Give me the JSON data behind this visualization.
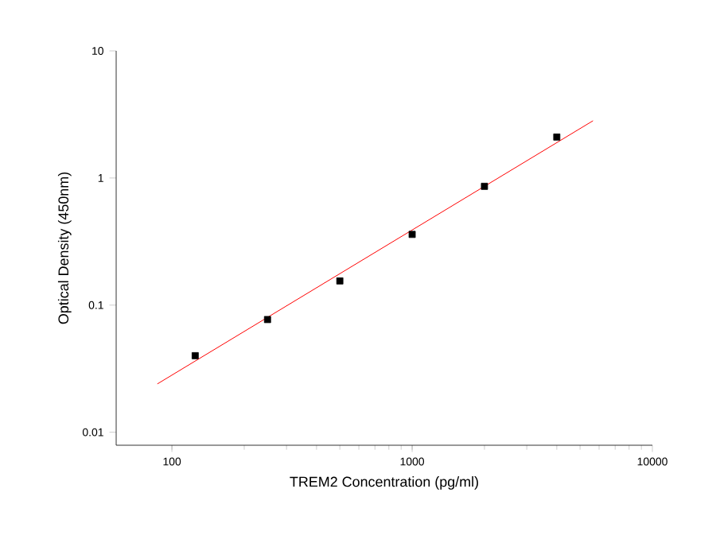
{
  "chart_data": {
    "type": "scatter",
    "xlabel": "TREM2 Concentration (pg/ml)",
    "ylabel": "Optical Density (450nm)",
    "log": "xy",
    "grid": false,
    "xlim": [
      58.6,
      10000
    ],
    "ylim": [
      0.0079,
      10
    ],
    "xticks": [
      100,
      1000,
      10000
    ],
    "yticks": [
      0.01,
      0.1,
      1,
      10
    ],
    "series": [
      {
        "color": "#000000",
        "marker": "square",
        "x": [
          125,
          250,
          500,
          1000,
          2000,
          4000
        ],
        "values": [
          0.04,
          0.077,
          0.155,
          0.36,
          0.86,
          2.1
        ]
      },
      {
        "type": "line",
        "color": "#ff0000",
        "marker": "none",
        "x": [
          87,
          5660
        ],
        "values": [
          0.024,
          2.82
        ]
      }
    ]
  }
}
